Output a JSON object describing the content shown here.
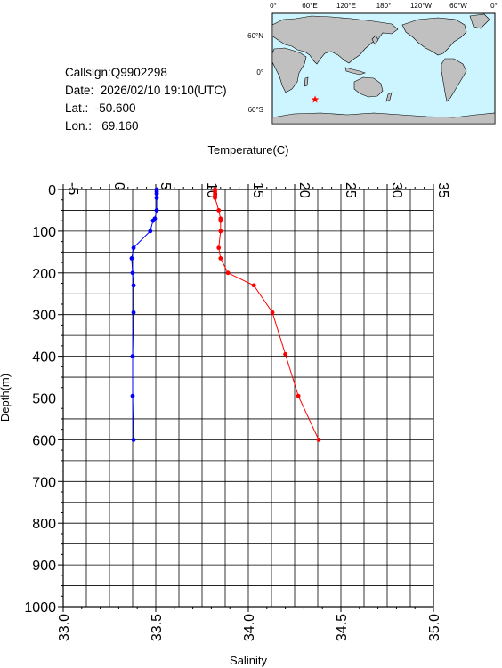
{
  "station": {
    "callsign": "Callsign:Q9902298",
    "date": "Date:  2026/02/10 19:10(UTC)",
    "lat": "Lat.:  -50.600",
    "lon": "Lon.:   69.160"
  },
  "map": {
    "lon_labels": [
      "0°",
      "60°E",
      "120°E",
      "180°",
      "120°W",
      "60°W",
      "0°"
    ],
    "lat_labels": [
      "60°N",
      "0°",
      "60°S"
    ],
    "ocean_color": "#ccf5ff",
    "land_color": "#c0c0c0",
    "marker": {
      "lat": -50.6,
      "lon": 69.16,
      "color": "#ff0000",
      "icon": "star-icon"
    }
  },
  "chart_data": {
    "type": "line",
    "depth_axis": {
      "label": "Depth(m)",
      "range": [
        0,
        1000
      ],
      "ticks": [
        0,
        100,
        200,
        300,
        400,
        500,
        600,
        700,
        800,
        900,
        1000
      ]
    },
    "temperature_axis": {
      "label": "Temperature(C)",
      "range": [
        -5,
        35
      ],
      "ticks": [
        -5,
        0,
        5,
        10,
        15,
        20,
        25,
        30,
        35
      ]
    },
    "salinity_axis": {
      "label": "Salinity",
      "range": [
        33.0,
        35.0
      ],
      "ticks": [
        "33.0",
        "33.5",
        "34.0",
        "34.5",
        "35.0"
      ]
    },
    "grid": true,
    "series": [
      {
        "axis": "temperature",
        "color": "#0000ff",
        "points": [
          {
            "depth": 0,
            "value": 5.1
          },
          {
            "depth": 5,
            "value": 5.1
          },
          {
            "depth": 10,
            "value": 5.1
          },
          {
            "depth": 20,
            "value": 5.1
          },
          {
            "depth": 50,
            "value": 5.1
          },
          {
            "depth": 70,
            "value": 4.9
          },
          {
            "depth": 75,
            "value": 4.7
          },
          {
            "depth": 100,
            "value": 4.4
          },
          {
            "depth": 140,
            "value": 2.6
          },
          {
            "depth": 165,
            "value": 2.4
          },
          {
            "depth": 200,
            "value": 2.5
          },
          {
            "depth": 230,
            "value": 2.6
          },
          {
            "depth": 295,
            "value": 2.6
          },
          {
            "depth": 400,
            "value": 2.5
          },
          {
            "depth": 495,
            "value": 2.5
          },
          {
            "depth": 600,
            "value": 2.6
          }
        ]
      },
      {
        "axis": "salinity",
        "color": "#ff0000",
        "points": [
          {
            "depth": 0,
            "value": 33.82
          },
          {
            "depth": 5,
            "value": 33.82
          },
          {
            "depth": 10,
            "value": 33.82
          },
          {
            "depth": 15,
            "value": 33.82
          },
          {
            "depth": 20,
            "value": 33.82
          },
          {
            "depth": 50,
            "value": 33.84
          },
          {
            "depth": 70,
            "value": 33.85
          },
          {
            "depth": 75,
            "value": 33.85
          },
          {
            "depth": 100,
            "value": 33.85
          },
          {
            "depth": 140,
            "value": 33.84
          },
          {
            "depth": 165,
            "value": 33.85
          },
          {
            "depth": 200,
            "value": 33.89
          },
          {
            "depth": 230,
            "value": 34.03
          },
          {
            "depth": 295,
            "value": 34.13
          },
          {
            "depth": 395,
            "value": 34.2
          },
          {
            "depth": 495,
            "value": 34.27
          },
          {
            "depth": 600,
            "value": 34.38
          }
        ]
      }
    ]
  }
}
